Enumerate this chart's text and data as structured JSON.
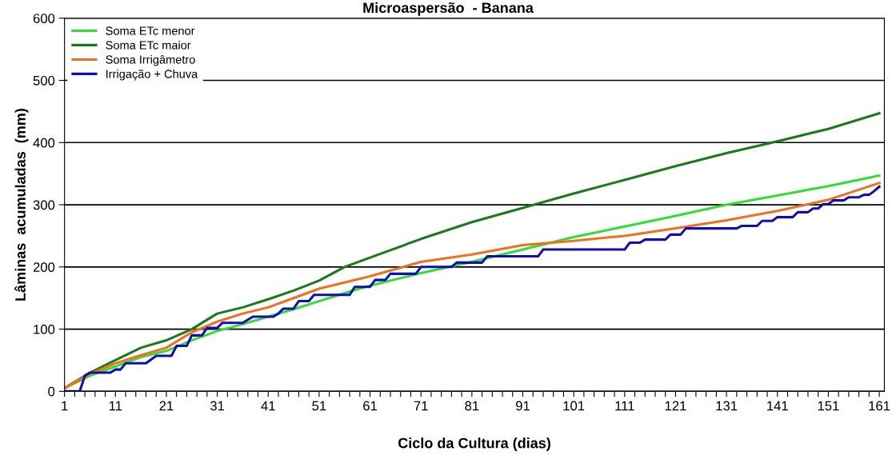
{
  "chart_data": {
    "type": "line",
    "title": "Microaspersão  - Banana",
    "xlabel": "Ciclo da Cultura (dias)",
    "ylabel": "Lâminas  acumuladas  (mm)",
    "xlim": [
      1,
      162
    ],
    "ylim": [
      0,
      600
    ],
    "yticks": [
      0,
      100,
      200,
      300,
      400,
      500,
      600
    ],
    "xticks": [
      1,
      {
        "value": 3,
        "label": null
      },
      {
        "value": 5,
        "label": null
      },
      {
        "value": 7,
        "label": null
      },
      {
        "value": 9,
        "label": null
      },
      11,
      {
        "value": 13,
        "label": null
      },
      {
        "value": 15,
        "label": null
      },
      {
        "value": 17,
        "label": null
      },
      {
        "value": 19,
        "label": null
      },
      21,
      {
        "value": 23,
        "label": null
      },
      {
        "value": 25,
        "label": null
      },
      {
        "value": 27,
        "label": null
      },
      {
        "value": 29,
        "label": null
      },
      31,
      {
        "value": 33,
        "label": null
      },
      {
        "value": 35,
        "label": null
      },
      {
        "value": 37,
        "label": null
      },
      {
        "value": 39,
        "label": null
      },
      41,
      {
        "value": 43,
        "label": null
      },
      {
        "value": 45,
        "label": null
      },
      {
        "value": 47,
        "label": null
      },
      {
        "value": 49,
        "label": null
      },
      51,
      {
        "value": 53,
        "label": null
      },
      {
        "value": 55,
        "label": null
      },
      {
        "value": 57,
        "label": null
      },
      {
        "value": 59,
        "label": null
      },
      61,
      {
        "value": 63,
        "label": null
      },
      {
        "value": 65,
        "label": null
      },
      {
        "value": 67,
        "label": null
      },
      {
        "value": 69,
        "label": null
      },
      71,
      {
        "value": 73,
        "label": null
      },
      {
        "value": 75,
        "label": null
      },
      {
        "value": 77,
        "label": null
      },
      {
        "value": 79,
        "label": null
      },
      81,
      {
        "value": 83,
        "label": null
      },
      {
        "value": 85,
        "label": null
      },
      {
        "value": 87,
        "label": null
      },
      {
        "value": 89,
        "label": null
      },
      91,
      {
        "value": 93,
        "label": null
      },
      {
        "value": 95,
        "label": null
      },
      {
        "value": 97,
        "label": null
      },
      {
        "value": 99,
        "label": null
      },
      101,
      {
        "value": 103,
        "label": null
      },
      {
        "value": 105,
        "label": null
      },
      {
        "value": 107,
        "label": null
      },
      {
        "value": 109,
        "label": null
      },
      111,
      {
        "value": 113,
        "label": null
      },
      {
        "value": 115,
        "label": null
      },
      {
        "value": 117,
        "label": null
      },
      {
        "value": 119,
        "label": null
      },
      121,
      {
        "value": 123,
        "label": null
      },
      {
        "value": 125,
        "label": null
      },
      {
        "value": 127,
        "label": null
      },
      {
        "value": 129,
        "label": null
      },
      131,
      {
        "value": 133,
        "label": null
      },
      {
        "value": 135,
        "label": null
      },
      {
        "value": 137,
        "label": null
      },
      {
        "value": 139,
        "label": null
      },
      141,
      {
        "value": 143,
        "label": null
      },
      {
        "value": 145,
        "label": null
      },
      {
        "value": 147,
        "label": null
      },
      {
        "value": 149,
        "label": null
      },
      151,
      {
        "value": 153,
        "label": null
      },
      {
        "value": 155,
        "label": null
      },
      {
        "value": 157,
        "label": null
      },
      {
        "value": 159,
        "label": null
      },
      161
    ],
    "grid": "y",
    "legend": "top left",
    "line_style": "solid",
    "series": [
      {
        "name": "Soma ETc menor",
        "color": "#33dd33",
        "x": [
          1,
          6,
          11,
          16,
          21,
          26,
          31,
          36,
          41,
          46,
          51,
          56,
          61,
          71,
          81,
          91,
          101,
          111,
          121,
          131,
          141,
          151,
          161
        ],
        "values": [
          5,
          25,
          40,
          55,
          65,
          82,
          97,
          108,
          120,
          132,
          145,
          158,
          170,
          190,
          208,
          228,
          248,
          265,
          282,
          300,
          315,
          330,
          347
        ]
      },
      {
        "name": "Soma ETc maior",
        "color": "#1a7a1a",
        "x": [
          1,
          6,
          11,
          16,
          21,
          26,
          31,
          36,
          41,
          46,
          51,
          56,
          61,
          71,
          81,
          91,
          101,
          111,
          121,
          131,
          141,
          151,
          161
        ],
        "values": [
          5,
          30,
          50,
          70,
          82,
          100,
          125,
          135,
          148,
          162,
          178,
          200,
          215,
          245,
          272,
          295,
          318,
          340,
          362,
          383,
          402,
          422,
          447
        ]
      },
      {
        "name": "Soma Irrigâmetro",
        "color": "#f07020",
        "x": [
          1,
          6,
          11,
          16,
          21,
          26,
          31,
          36,
          41,
          46,
          51,
          56,
          61,
          71,
          81,
          91,
          101,
          111,
          121,
          131,
          141,
          151,
          161
        ],
        "values": [
          5,
          28,
          45,
          58,
          70,
          95,
          112,
          125,
          135,
          150,
          165,
          175,
          185,
          208,
          220,
          235,
          242,
          250,
          262,
          275,
          290,
          308,
          335
        ]
      },
      {
        "name": "Irrigação + Chuva",
        "color": "#1010b0",
        "x": [
          1,
          4,
          5,
          6,
          10,
          11,
          12,
          13,
          17,
          19,
          22,
          23,
          25,
          26,
          28,
          29,
          31,
          32,
          36,
          38,
          42,
          43,
          44,
          46,
          47,
          49,
          50,
          57,
          58,
          61,
          62,
          64,
          65,
          70,
          71,
          77,
          78,
          83,
          84,
          94,
          95,
          111,
          112,
          114,
          115,
          119,
          120,
          122,
          123,
          133,
          134,
          137,
          138,
          140,
          141,
          144,
          145,
          147,
          148,
          149,
          150,
          151,
          152,
          154,
          155,
          157,
          158,
          159,
          160,
          161
        ],
        "values": [
          0,
          0,
          25,
          30,
          30,
          35,
          35,
          45,
          45,
          57,
          57,
          73,
          73,
          90,
          90,
          102,
          102,
          110,
          110,
          120,
          120,
          125,
          133,
          133,
          145,
          145,
          155,
          155,
          168,
          168,
          179,
          179,
          189,
          189,
          200,
          200,
          207,
          207,
          217,
          217,
          228,
          228,
          239,
          239,
          244,
          244,
          252,
          252,
          262,
          262,
          266,
          266,
          274,
          274,
          280,
          280,
          288,
          288,
          294,
          294,
          301,
          301,
          307,
          307,
          312,
          312,
          316,
          316,
          322,
          329
        ]
      }
    ]
  }
}
